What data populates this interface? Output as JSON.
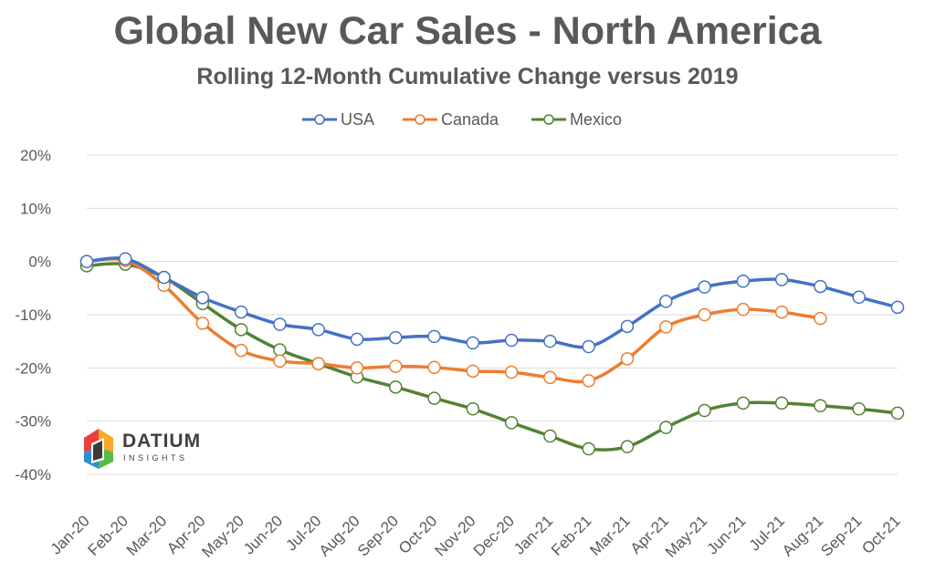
{
  "chart_data": {
    "type": "line",
    "title": "Global New Car Sales - North America",
    "subtitle": "Rolling 12-Month Cumulative Change versus 2019",
    "xlabel": "",
    "ylabel": "",
    "categories": [
      "Jan-20",
      "Feb-20",
      "Mar-20",
      "Apr-20",
      "May-20",
      "Jun-20",
      "Jul-20",
      "Aug-20",
      "Sep-20",
      "Oct-20",
      "Nov-20",
      "Dec-20",
      "Jan-21",
      "Feb-21",
      "Mar-21",
      "Apr-21",
      "May-21",
      "Jun-21",
      "Jul-21",
      "Aug-21",
      "Sep-21",
      "Oct-21"
    ],
    "ylim": [
      -40,
      20
    ],
    "yticks": [
      20,
      10,
      0,
      -10,
      -20,
      -30,
      -40
    ],
    "ytick_labels": [
      "20%",
      "10%",
      "0%",
      "-10%",
      "-20%",
      "-30%",
      "-40%"
    ],
    "grid": "horizontal",
    "legend_position": "top",
    "series": [
      {
        "name": "USA",
        "color": "#4472C4",
        "values": [
          0,
          0.5,
          -3,
          -6.8,
          -9.5,
          -11.8,
          -12.8,
          -14.6,
          -14.3,
          -14.1,
          -15.3,
          -14.8,
          -15,
          -16,
          -12.2,
          -7.5,
          -4.8,
          -3.7,
          -3.4,
          -4.7,
          -6.7,
          -8.6
        ]
      },
      {
        "name": "Canada",
        "color": "#ED7D31",
        "values": [
          0,
          0.2,
          -4.5,
          -11.6,
          -16.7,
          -18.7,
          -19.2,
          -20,
          -19.7,
          -19.9,
          -20.6,
          -20.8,
          -21.8,
          -22.4,
          -18.3,
          -12.3,
          -10,
          -9,
          -9.5,
          -10.7,
          null,
          null
        ]
      },
      {
        "name": "Mexico",
        "color": "#548235",
        "values": [
          -0.8,
          -0.5,
          -3,
          -7.9,
          -12.8,
          -16.6,
          -19.2,
          -21.7,
          -23.6,
          -25.7,
          -27.7,
          -30.3,
          -32.8,
          -35.2,
          -34.8,
          -31.2,
          -28,
          -26.6,
          -26.6,
          -27.1,
          -27.7,
          -28.5
        ]
      }
    ]
  },
  "logo": {
    "name": "DATIUM",
    "sub": "INSIGHTS"
  }
}
